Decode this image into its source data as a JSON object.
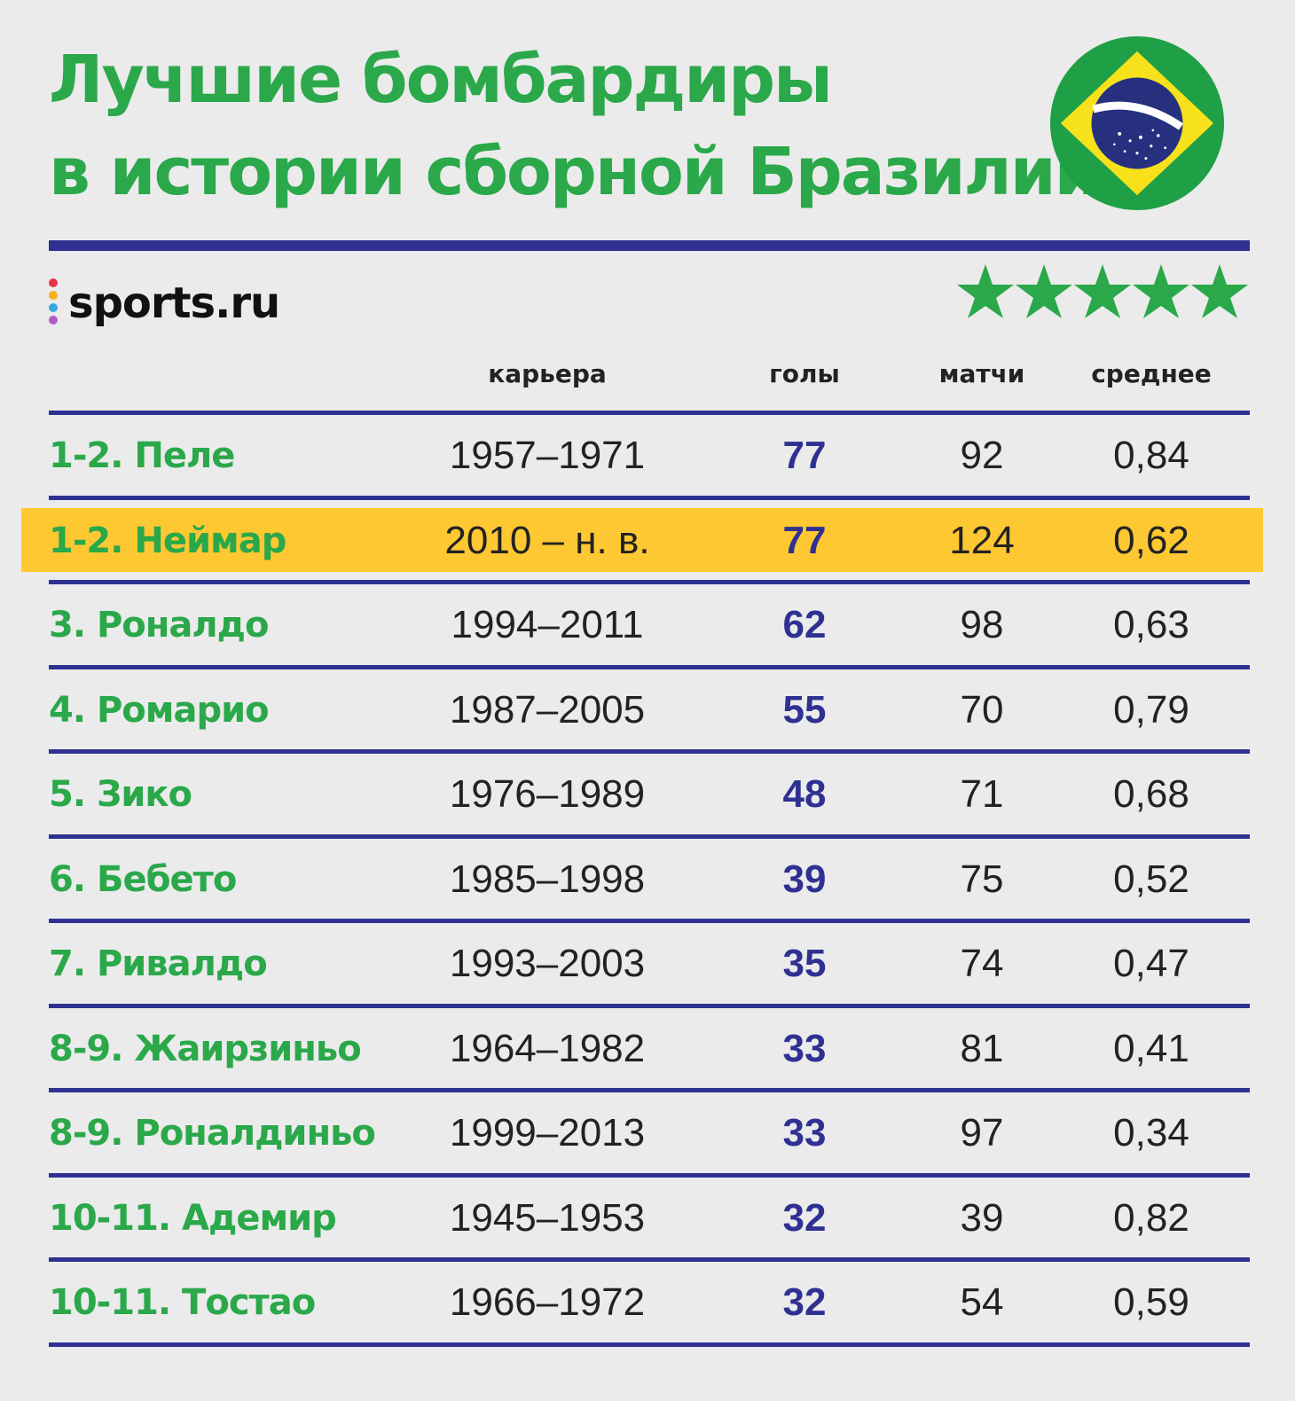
{
  "title": {
    "line1": "Лучшие бомбардиры",
    "line2": "в истории сборной Бразилии"
  },
  "logo": {
    "text": "sports.ru"
  },
  "decor": {
    "flag_icon": "brazil-flag-icon",
    "stars_icon": "star-icon",
    "star_count": 5
  },
  "colors": {
    "title_green": "#2aa84a",
    "rule_blue": "#2e3192",
    "highlight_yellow": "#fec832",
    "background": "#ebebeb"
  },
  "header": {
    "career": "карьера",
    "goals": "голы",
    "matches": "матчи",
    "average": "среднее"
  },
  "chart_data": {
    "type": "table",
    "columns": [
      "",
      "карьера",
      "голы",
      "матчи",
      "среднее"
    ],
    "highlighted_row": 1,
    "rows": [
      {
        "name": "1-2. Пеле",
        "career": "1957–1971",
        "goals": "77",
        "matches": "92",
        "average": "0,84"
      },
      {
        "name": "1-2. Неймар",
        "career": "2010 – н. в.",
        "goals": "77",
        "matches": "124",
        "average": "0,62"
      },
      {
        "name": "3. Роналдо",
        "career": "1994–2011",
        "goals": "62",
        "matches": "98",
        "average": "0,63"
      },
      {
        "name": "4. Ромарио",
        "career": "1987–2005",
        "goals": "55",
        "matches": "70",
        "average": "0,79"
      },
      {
        "name": "5. Зико",
        "career": "1976–1989",
        "goals": "48",
        "matches": "71",
        "average": "0,68"
      },
      {
        "name": "6. Бебето",
        "career": "1985–1998",
        "goals": "39",
        "matches": "75",
        "average": "0,52"
      },
      {
        "name": "7. Ривалдо",
        "career": "1993–2003",
        "goals": "35",
        "matches": "74",
        "average": "0,47"
      },
      {
        "name": "8-9. Жаирзиньо",
        "career": "1964–1982",
        "goals": "33",
        "matches": "81",
        "average": "0,41"
      },
      {
        "name": "8-9. Роналдиньо",
        "career": "1999–2013",
        "goals": "33",
        "matches": "97",
        "average": "0,34"
      },
      {
        "name": "10-11. Адемир",
        "career": "1945–1953",
        "goals": "32",
        "matches": "39",
        "average": "0,82"
      },
      {
        "name": "10-11. Тостао",
        "career": "1966–1972",
        "goals": "32",
        "matches": "54",
        "average": "0,59"
      }
    ]
  }
}
